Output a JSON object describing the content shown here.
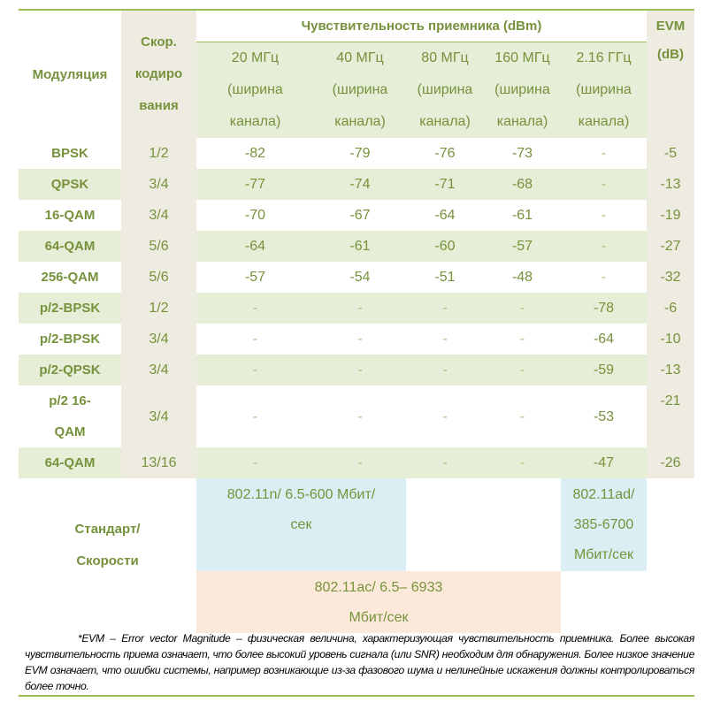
{
  "header": {
    "modulation": "Модуляция",
    "code_rate": "Скор. кодиро вания",
    "sensitivity": "Чувствительность  приемника (dBm)",
    "evm": "EVM (dB)",
    "bandwidths": [
      "20 МГц (ширина канала)",
      "40 МГц (ширина канала)",
      "80 МГц (ширина канала)",
      "160 МГц (ширина канала)",
      "2.16 ГГц (ширина канала)"
    ]
  },
  "rows": [
    {
      "mod": "BPSK",
      "rate": "1/2",
      "v": [
        "-82",
        "-79",
        "-76",
        "-73",
        "-"
      ],
      "evm": "-5"
    },
    {
      "mod": "QPSK",
      "rate": "3/4",
      "v": [
        "-77",
        "-74",
        "-71",
        "-68",
        "-"
      ],
      "evm": "-13"
    },
    {
      "mod": "16-QAM",
      "rate": "3/4",
      "v": [
        "-70",
        "-67",
        "-64",
        "-61",
        "-"
      ],
      "evm": "-19"
    },
    {
      "mod": "64-QAM",
      "rate": "5/6",
      "v": [
        "-64",
        "-61",
        "-60",
        "-57",
        "-"
      ],
      "evm": "-27"
    },
    {
      "mod": "256-QAM",
      "rate": "5/6",
      "v": [
        "-57",
        "-54",
        "-51",
        "-48",
        "-"
      ],
      "evm": "-32"
    },
    {
      "mod": "p/2-BPSK",
      "rate": "1/2",
      "v": [
        "-",
        "-",
        "-",
        "-",
        "-78"
      ],
      "evm": "-6"
    },
    {
      "mod": "p/2-BPSK",
      "rate": "3/4",
      "v": [
        "-",
        "-",
        "-",
        "-",
        "-64"
      ],
      "evm": "-10"
    },
    {
      "mod": "p/2-QPSK",
      "rate": "3/4",
      "v": [
        "-",
        "-",
        "-",
        "-",
        "-59"
      ],
      "evm": "-13"
    },
    {
      "mod": "p/2 16-QAM",
      "rate": "3/4",
      "v": [
        "-",
        "-",
        "-",
        "-",
        "-53"
      ],
      "evm": "-21"
    },
    {
      "mod": "64-QAM",
      "rate": "13/16",
      "v": [
        "-",
        "-",
        "-",
        "-",
        "-47"
      ],
      "evm": "-26"
    }
  ],
  "standards": {
    "label": "Стандарт/ Скорости",
    "n": "802.11n/ 6.5-600 Мбит/сек",
    "ad": "802.11ad/ 385-6700 Мбит/сек",
    "ac": "802.11ac/ 6.5– 6933 Мбит/сек"
  },
  "footnote": "*EVM – Error vector Magnitude – физическая величина, характеризующая чувствительность приемника. Более высокая чувствительность приема означает, что более высокий уровень сигнала (или SNR) необходим для обнаружения. Более низкое значение EVM означает, что ошибки системы, например возникающие из-за фазового шума и нелинейные искажения должны контролироваться более точно.",
  "colors": {
    "text": "#76923C",
    "row_band": "#E6EED8",
    "column_band": "#EEECE1",
    "standard_blue": "#DAEEF3",
    "standard_peach": "#FDE9D9",
    "rule": "#9BBB59"
  }
}
